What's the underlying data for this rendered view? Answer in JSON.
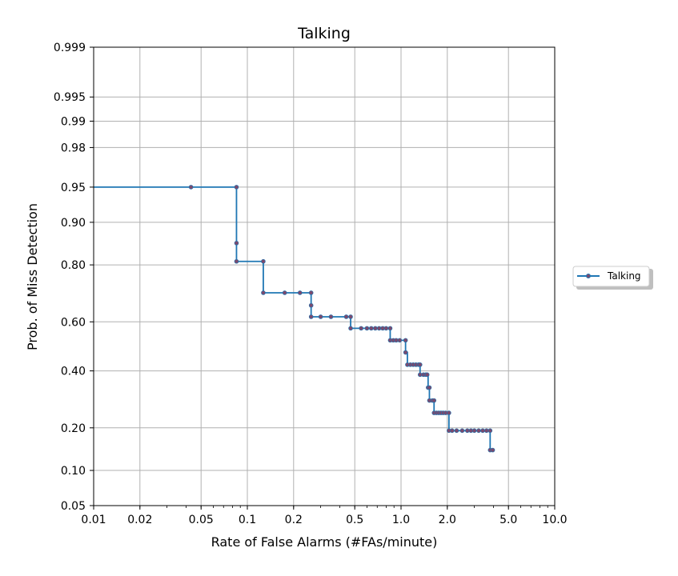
{
  "chart_data": {
    "type": "line",
    "title": "Talking",
    "xlabel": "Rate of False Alarms (#FAs/minute)",
    "ylabel": "Prob. of Miss Detection",
    "x_scale": "log",
    "y_scale": "normal-deviate (probit)",
    "xlim": [
      0.01,
      10.0
    ],
    "ylim": [
      0.05,
      0.999
    ],
    "x_ticks": [
      0.01,
      0.02,
      0.05,
      0.1,
      0.2,
      0.5,
      1.0,
      2.0,
      5.0,
      10.0
    ],
    "x_tick_labels": [
      "0.01",
      "0.02",
      "0.05",
      "0.1",
      "0.2",
      "0.5",
      "1.0",
      "2.0",
      "5.0",
      "10.0"
    ],
    "y_ticks": [
      0.05,
      0.1,
      0.2,
      0.4,
      0.6,
      0.8,
      0.9,
      0.95,
      0.98,
      0.99,
      0.995,
      0.999
    ],
    "y_tick_labels": [
      "0.05",
      "0.10",
      "0.20",
      "0.40",
      "0.60",
      "0.80",
      "0.90",
      "0.95",
      "0.98",
      "0.99",
      "0.995",
      "0.999"
    ],
    "grid": true,
    "legend_placement": "outside-right",
    "step": true,
    "series": [
      {
        "name": "Talking",
        "color": "#1f77b4",
        "marker_color": "#7a4a6e",
        "points": [
          [
            0.01,
            0.95
          ],
          [
            0.043,
            0.95
          ],
          [
            0.085,
            0.95
          ],
          [
            0.085,
            0.857
          ],
          [
            0.085,
            0.81
          ],
          [
            0.127,
            0.81
          ],
          [
            0.127,
            0.71
          ],
          [
            0.175,
            0.71
          ],
          [
            0.22,
            0.71
          ],
          [
            0.26,
            0.71
          ],
          [
            0.26,
            0.664
          ],
          [
            0.26,
            0.62
          ],
          [
            0.3,
            0.62
          ],
          [
            0.35,
            0.62
          ],
          [
            0.44,
            0.62
          ],
          [
            0.47,
            0.62
          ],
          [
            0.47,
            0.574
          ],
          [
            0.55,
            0.574
          ],
          [
            0.6,
            0.574
          ],
          [
            0.64,
            0.574
          ],
          [
            0.68,
            0.574
          ],
          [
            0.72,
            0.574
          ],
          [
            0.76,
            0.574
          ],
          [
            0.8,
            0.574
          ],
          [
            0.85,
            0.574
          ],
          [
            0.85,
            0.525
          ],
          [
            0.89,
            0.525
          ],
          [
            0.93,
            0.525
          ],
          [
            0.98,
            0.525
          ],
          [
            1.07,
            0.525
          ],
          [
            1.07,
            0.475
          ],
          [
            1.1,
            0.425
          ],
          [
            1.15,
            0.425
          ],
          [
            1.2,
            0.425
          ],
          [
            1.25,
            0.425
          ],
          [
            1.3,
            0.425
          ],
          [
            1.33,
            0.425
          ],
          [
            1.33,
            0.385
          ],
          [
            1.4,
            0.385
          ],
          [
            1.45,
            0.385
          ],
          [
            1.48,
            0.385
          ],
          [
            1.5,
            0.335
          ],
          [
            1.53,
            0.335
          ],
          [
            1.53,
            0.288
          ],
          [
            1.6,
            0.288
          ],
          [
            1.64,
            0.288
          ],
          [
            1.64,
            0.246
          ],
          [
            1.7,
            0.246
          ],
          [
            1.76,
            0.246
          ],
          [
            1.82,
            0.246
          ],
          [
            1.88,
            0.246
          ],
          [
            1.95,
            0.246
          ],
          [
            2.05,
            0.246
          ],
          [
            2.05,
            0.192
          ],
          [
            2.15,
            0.192
          ],
          [
            2.3,
            0.192
          ],
          [
            2.5,
            0.192
          ],
          [
            2.7,
            0.192
          ],
          [
            2.85,
            0.192
          ],
          [
            3.0,
            0.192
          ],
          [
            3.2,
            0.192
          ],
          [
            3.4,
            0.192
          ],
          [
            3.6,
            0.192
          ],
          [
            3.8,
            0.192
          ],
          [
            3.8,
            0.142
          ],
          [
            3.95,
            0.142
          ]
        ]
      }
    ]
  }
}
